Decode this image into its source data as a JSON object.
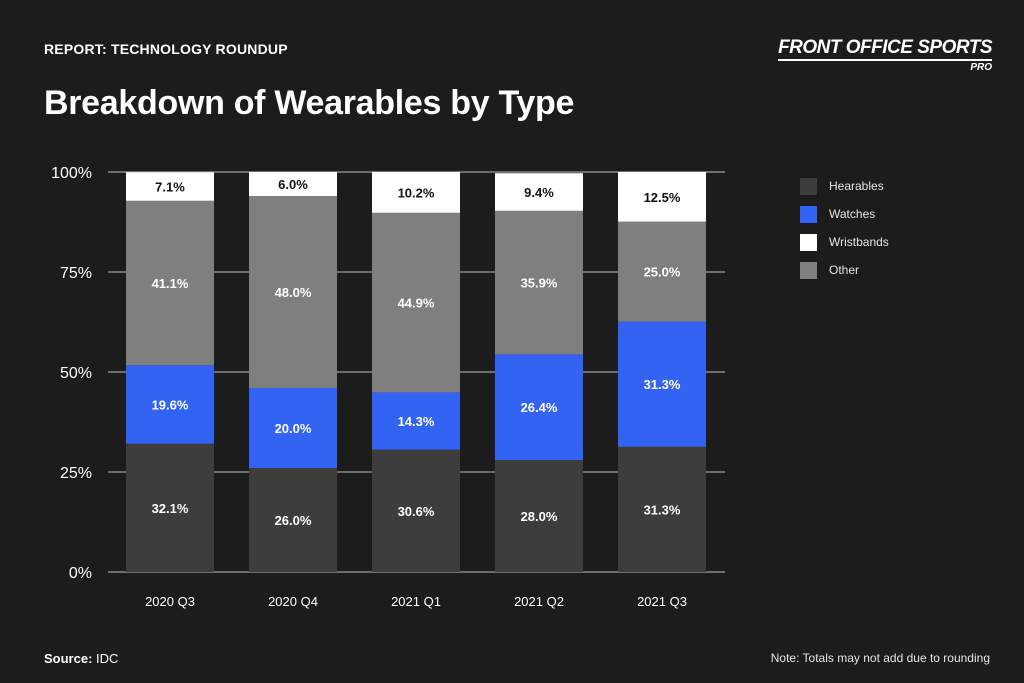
{
  "header": {
    "report_label": "REPORT: TECHNOLOGY ROUNDUP",
    "title": "Breakdown of Wearables by Type",
    "brand_name": "FRONT OFFICE SPORTS",
    "brand_sub": "PRO"
  },
  "footer": {
    "source_label": "Source:",
    "source_value": "IDC",
    "note": "Note: Totals may not add due to rounding"
  },
  "colors": {
    "Hearables": "#3d3d3d",
    "Watches": "#3363f3",
    "Wristbands": "#ffffff",
    "Other": "#7f7f7f"
  },
  "legend": [
    {
      "label": "Hearables"
    },
    {
      "label": "Watches"
    },
    {
      "label": "Wristbands"
    },
    {
      "label": "Other"
    }
  ],
  "chart_data": {
    "type": "bar",
    "stacked": true,
    "title": "Breakdown of Wearables by Type",
    "xlabel": "",
    "ylabel": "",
    "ylim": [
      0,
      100
    ],
    "yticks": [
      "0%",
      "25%",
      "50%",
      "75%",
      "100%"
    ],
    "ytick_values": [
      0,
      25,
      50,
      75,
      100
    ],
    "grid": true,
    "legend_position": "right",
    "categories": [
      "2020 Q3",
      "2020 Q4",
      "2021 Q1",
      "2021 Q2",
      "2021 Q3"
    ],
    "series": [
      {
        "name": "Hearables",
        "values": [
          32.1,
          26.0,
          30.6,
          28.0,
          31.3
        ],
        "labels": [
          "32.1%",
          "26.0%",
          "30.6%",
          "28.0%",
          "31.3%"
        ]
      },
      {
        "name": "Watches",
        "values": [
          19.6,
          20.0,
          14.3,
          26.4,
          31.3
        ],
        "labels": [
          "19.6%",
          "20.0%",
          "14.3%",
          "26.4%",
          "31.3%"
        ]
      },
      {
        "name": "Other",
        "values": [
          41.1,
          48.0,
          44.9,
          35.9,
          25.0
        ],
        "labels": [
          "41.1%",
          "48.0%",
          "44.9%",
          "35.9%",
          "25.0%"
        ]
      },
      {
        "name": "Wristbands",
        "values": [
          7.1,
          6.0,
          10.2,
          9.4,
          12.5
        ],
        "labels": [
          "7.1%",
          "6.0%",
          "10.2%",
          "9.4%",
          "12.5%"
        ]
      }
    ]
  }
}
